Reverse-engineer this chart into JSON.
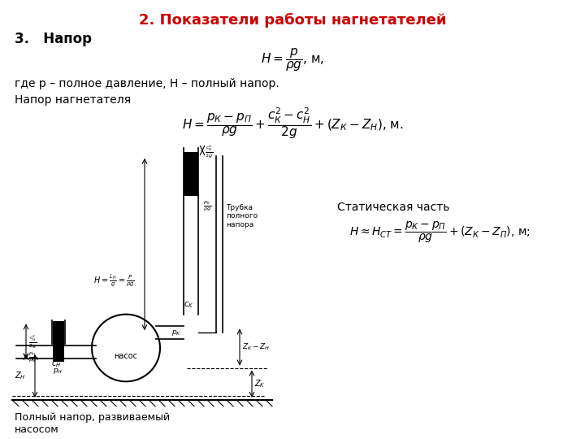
{
  "title": "2. Показатели работы нагнетателей",
  "title_color": "#cc0000",
  "title_fontsize": 13,
  "section_header": "3.   Напор",
  "eq1": "$H = \\dfrac{p}{\\rho g}$, м,",
  "eq1_note": "где р – полное давление, Н – полный напор.",
  "eq2_label": "Напор нагнетателя",
  "eq2": "$H = \\dfrac{p_{К} - p_{П}}{\\rho g} + \\dfrac{c_{К}^{2} - c_{Н}^{2}}{2g} + (Z_{К} - Z_{Н})$, м.",
  "static_label": "Статическая часть",
  "eq3": "$H \\approx H_{СТ} = \\dfrac{p_{К} - p_{П}}{\\rho g} + (Z_{К} - Z_{П})$, м;",
  "caption": "Полный напор, развиваемый\nнасосом",
  "bg_color": "#ffffff",
  "text_color": "#000000",
  "diagram_color": "#000000"
}
